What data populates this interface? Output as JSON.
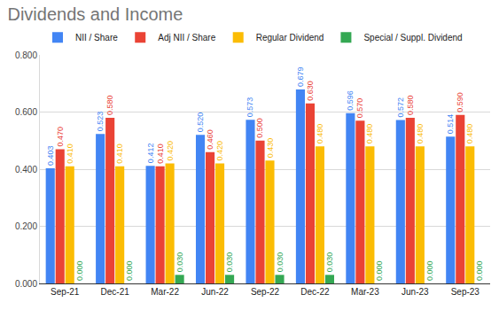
{
  "chart_data": {
    "type": "bar",
    "title": "Dividends and Income",
    "categories": [
      "Sep-21",
      "Dec-21",
      "Mar-22",
      "Jun-22",
      "Sep-22",
      "Dec-22",
      "Mar-23",
      "Jun-23",
      "Sep-23"
    ],
    "series": [
      {
        "name": "NII / Share",
        "color": "#4285f4",
        "values": [
          0.403,
          0.523,
          0.412,
          0.52,
          0.573,
          0.679,
          0.596,
          0.572,
          0.514
        ],
        "value_labels": [
          "0.403",
          "0.523",
          "0.412",
          "0.520",
          "0.573",
          "0.679",
          "0.596",
          "0.572",
          "0.514"
        ]
      },
      {
        "name": "Adj NII / Share",
        "color": "#ea4335",
        "values": [
          0.47,
          0.58,
          0.41,
          0.46,
          0.5,
          0.63,
          0.57,
          0.58,
          0.59
        ],
        "value_labels": [
          "0.470",
          "0.580",
          "0.410",
          "0.460",
          "0.500",
          "0.630",
          "0.570",
          "0.580",
          "0.590"
        ]
      },
      {
        "name": "Regular Dividend",
        "color": "#fbbc04",
        "values": [
          0.41,
          0.41,
          0.42,
          0.42,
          0.43,
          0.48,
          0.48,
          0.48,
          0.48
        ],
        "value_labels": [
          "0.410",
          "0.410",
          "0.420",
          "0.420",
          "0.430",
          "0.480",
          "0.480",
          "0.480",
          "0.480"
        ]
      },
      {
        "name": "Special / Suppl. Dividend",
        "color": "#34a853",
        "values": [
          0,
          0,
          0.03,
          0.03,
          0.03,
          0.03,
          0,
          0,
          0
        ],
        "value_labels": [
          "0.000",
          "0.000",
          "0.030",
          "0.030",
          "0.030",
          "0.030",
          "0.000",
          "0.000",
          "0.000"
        ]
      }
    ],
    "ylim": [
      0,
      0.8
    ],
    "yticks": [
      {
        "value": 0,
        "label": "0.000"
      },
      {
        "value": 0.2,
        "label": "0.200"
      },
      {
        "value": 0.4,
        "label": "0.400"
      },
      {
        "value": 0.6,
        "label": "0.600"
      },
      {
        "value": 0.8,
        "label": "0.800"
      }
    ],
    "grid": true,
    "legend": "top",
    "data_labels": true
  }
}
